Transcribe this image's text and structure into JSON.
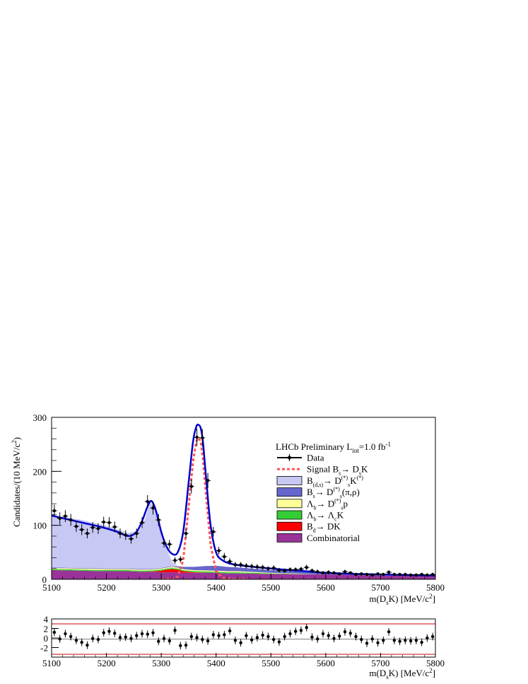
{
  "chart_data": [
    {
      "type": "line",
      "title": "",
      "annotation": "LHCb Preliminary L",
      "annotation_sub": "int",
      "annotation_tail": "=1.0 fb",
      "annotation_sup": "-1",
      "xlabel_main": "m(D",
      "xlabel_sub": "s",
      "xlabel_tail": "K) [MeV/c",
      "xlabel_sup": "2",
      "xlabel_end": "]",
      "ylabel": "Candidates/(10 MeV/c",
      "ylabel_sup": "2",
      "ylabel_end": ")",
      "xlim": [
        5100,
        5800
      ],
      "ylim": [
        0,
        300
      ],
      "x_ticks": [
        "5100",
        "5200",
        "5300",
        "5400",
        "5500",
        "5600",
        "5700",
        "5800"
      ],
      "y_ticks": [
        "0",
        "100",
        "200",
        "300"
      ],
      "legend": [
        {
          "key": "data",
          "label": "Data",
          "color": "#000000"
        },
        {
          "key": "signal",
          "label": "Signal B",
          "sub": "s",
          "label2": "→ D",
          "sub2": "s",
          "label3": "K",
          "color": "#ff5555"
        },
        {
          "key": "bds",
          "label": "B",
          "sub": "(d,s)",
          "label2": "→ D",
          "sub2": "s",
          "sup2": "(*)",
          "label3": "K",
          "sup3": "(*)",
          "color": "#c8c8f4"
        },
        {
          "key": "bs",
          "label": "B",
          "sub": "s",
          "label2": "→ D",
          "sub2": "s",
          "sup2": "(*)",
          "label3": "(π,ρ)",
          "color": "#6666cc"
        },
        {
          "key": "lb1",
          "label": "Λ",
          "sub": "b",
          "label2": "→ D",
          "sub2": "s",
          "sup2": "(*)",
          "label3": "p",
          "color": "#ffff99"
        },
        {
          "key": "lb2",
          "label": "Λ",
          "sub": "b",
          "label2": "→ Λ",
          "sub2": "c",
          "label3": "K",
          "color": "#33cc33"
        },
        {
          "key": "bd",
          "label": "B",
          "sub": "d",
          "label2": "→ DK",
          "color": "#ff0000"
        },
        {
          "key": "comb",
          "label": "Combinatorial",
          "color": "#993399"
        }
      ],
      "colors": {
        "fit": "#0000cc",
        "signal": "#ff5555",
        "bds": "#c8c8f4",
        "bs": "#6666cc",
        "lb1": "#ffff99",
        "lb2": "#33cc33",
        "bd": "#ff0000",
        "comb": "#993399"
      },
      "data_points": {
        "x": [
          5105,
          5115,
          5125,
          5135,
          5145,
          5155,
          5165,
          5175,
          5185,
          5195,
          5205,
          5215,
          5225,
          5235,
          5245,
          5255,
          5265,
          5275,
          5285,
          5295,
          5305,
          5315,
          5325,
          5335,
          5345,
          5355,
          5365,
          5375,
          5385,
          5395,
          5405,
          5415,
          5425,
          5435,
          5445,
          5455,
          5465,
          5475,
          5485,
          5495,
          5505,
          5515,
          5525,
          5535,
          5545,
          5555,
          5565,
          5575,
          5585,
          5595,
          5605,
          5615,
          5625,
          5635,
          5645,
          5655,
          5665,
          5675,
          5685,
          5695,
          5705,
          5715,
          5725,
          5735,
          5745,
          5755,
          5765,
          5775,
          5785,
          5795
        ],
        "y": [
          127,
          113,
          117,
          110,
          98,
          92,
          85,
          96,
          94,
          106,
          105,
          97,
          85,
          82,
          75,
          85,
          105,
          144,
          132,
          110,
          67,
          65,
          35,
          37,
          85,
          172,
          263,
          262,
          183,
          88,
          53,
          42,
          33,
          27,
          27,
          25,
          24,
          23,
          22,
          20,
          21,
          17,
          16,
          18,
          18,
          19,
          22,
          16,
          14,
          12,
          13,
          12,
          10,
          14,
          12,
          9,
          10,
          9,
          8,
          10,
          9,
          13,
          9,
          9,
          9,
          8,
          8,
          9,
          8,
          9
        ],
        "yerr": [
          11,
          11,
          11,
          11,
          10,
          10,
          9,
          10,
          10,
          10,
          10,
          10,
          9,
          9,
          9,
          9,
          10,
          12,
          12,
          11,
          8,
          8,
          6,
          6,
          9,
          13,
          16,
          16,
          14,
          9,
          7,
          7,
          6,
          5,
          5,
          5,
          5,
          5,
          5,
          4,
          5,
          4,
          4,
          4,
          4,
          4,
          5,
          4,
          4,
          3,
          4,
          3,
          3,
          4,
          3,
          3,
          3,
          3,
          3,
          3,
          3,
          4,
          3,
          3,
          3,
          3,
          3,
          3,
          3,
          3
        ]
      },
      "fit_total": {
        "x": [
          5100,
          5130,
          5160,
          5190,
          5220,
          5240,
          5255,
          5265,
          5275,
          5282,
          5290,
          5300,
          5310,
          5320,
          5330,
          5340,
          5350,
          5358,
          5364,
          5368,
          5372,
          5376,
          5382,
          5390,
          5400,
          5412,
          5430,
          5460,
          5500,
          5550,
          5600,
          5650,
          5700,
          5750,
          5800
        ],
        "y": [
          118,
          111,
          104,
          97,
          88,
          80,
          88,
          108,
          135,
          145,
          128,
          88,
          60,
          47,
          50,
          88,
          180,
          255,
          283,
          286,
          280,
          255,
          185,
          100,
          50,
          35,
          28,
          24,
          20,
          16,
          12,
          10,
          9,
          8,
          7
        ]
      },
      "signal": {
        "x": [
          5300,
          5320,
          5330,
          5340,
          5350,
          5358,
          5364,
          5368,
          5372,
          5376,
          5382,
          5390,
          5400,
          5412,
          5430,
          5460
        ],
        "y": [
          0,
          1,
          5,
          35,
          135,
          218,
          256,
          262,
          255,
          224,
          152,
          63,
          15,
          3,
          0.5,
          0
        ]
      },
      "stack": {
        "x": [
          5100,
          5150,
          5200,
          5240,
          5260,
          5270,
          5280,
          5290,
          5300,
          5310,
          5320,
          5330,
          5340,
          5360,
          5380,
          5400,
          5420,
          5440,
          5500,
          5600,
          5700,
          5800
        ],
        "comb": [
          17,
          16,
          15,
          15,
          14,
          14,
          14,
          14,
          13,
          13,
          13,
          13,
          12,
          12,
          12,
          12,
          11,
          11,
          10,
          9,
          7,
          6
        ],
        "bd": [
          0,
          0,
          0,
          0,
          0,
          0,
          0.5,
          1,
          3,
          5,
          6,
          5,
          3,
          1,
          0.5,
          0,
          0,
          0,
          0,
          0,
          0,
          0
        ],
        "lb2": [
          2,
          2,
          2,
          2,
          2,
          2,
          2,
          2,
          2,
          2,
          2,
          2,
          2,
          2,
          2,
          2,
          2,
          2,
          1,
          0,
          0,
          0
        ],
        "lb1": [
          2,
          2,
          2,
          2,
          2,
          2,
          2,
          2,
          2,
          2,
          2,
          2,
          2,
          2,
          2,
          2,
          2,
          2,
          1,
          0,
          0,
          0
        ],
        "bs": [
          1,
          1,
          1,
          1,
          1,
          1,
          1,
          1,
          1,
          1,
          1,
          2,
          4,
          6,
          8,
          9,
          8,
          7,
          5,
          3,
          2,
          1
        ],
        "bds": [
          97,
          90,
          79,
          66,
          71,
          92,
          124,
          110,
          68,
          34,
          8,
          1,
          0,
          0,
          0,
          0,
          0,
          0,
          0,
          0,
          0,
          0
        ]
      }
    },
    {
      "type": "scatter",
      "title": "",
      "xlabel_main": "m(D",
      "xlabel_sub": "s",
      "xlabel_tail": "K) [MeV/c",
      "xlabel_sup": "2",
      "xlabel_end": "]",
      "xlim": [
        5100,
        5800
      ],
      "ylim": [
        -4,
        4
      ],
      "x_ticks": [
        "5100",
        "5200",
        "5300",
        "5400",
        "5500",
        "5600",
        "5700",
        "5800"
      ],
      "y_ticks": [
        "-2",
        "0",
        "2",
        "4"
      ],
      "reference_lines": [
        -3,
        3
      ],
      "reference_color": "#cc0000",
      "pulls": {
        "x": [
          5105,
          5115,
          5125,
          5135,
          5145,
          5155,
          5165,
          5175,
          5185,
          5195,
          5205,
          5215,
          5225,
          5235,
          5245,
          5255,
          5265,
          5275,
          5285,
          5295,
          5305,
          5315,
          5325,
          5335,
          5345,
          5355,
          5365,
          5375,
          5385,
          5395,
          5405,
          5415,
          5425,
          5435,
          5445,
          5455,
          5465,
          5475,
          5485,
          5495,
          5505,
          5515,
          5525,
          5535,
          5545,
          5555,
          5565,
          5575,
          5585,
          5595,
          5605,
          5615,
          5625,
          5635,
          5645,
          5655,
          5665,
          5675,
          5685,
          5695,
          5705,
          5715,
          5725,
          5735,
          5745,
          5755,
          5765,
          5775,
          5785,
          5795
        ],
        "y": [
          1.2,
          -0.2,
          0.9,
          0.3,
          -0.5,
          -0.9,
          -1.5,
          -0.1,
          -0.3,
          1.1,
          1.4,
          1.0,
          0.1,
          0.2,
          -0.1,
          0.5,
          0.9,
          0.8,
          1.1,
          -0.7,
          -0.1,
          -0.6,
          1.6,
          -1.6,
          -1.5,
          0.3,
          0.1,
          -0.3,
          -0.6,
          0.7,
          0.5,
          0.7,
          1.5,
          -0.5,
          -1.0,
          0.5,
          -0.4,
          0.1,
          0.6,
          0.3,
          -0.3,
          -0.8,
          0.3,
          0.9,
          1.4,
          1.6,
          2.2,
          0.2,
          -0.2,
          0.9,
          0.5,
          -0.1,
          0.4,
          1.3,
          1.0,
          0.3,
          -0.3,
          -1.1,
          -0.2,
          -1.0,
          -0.5,
          1.3,
          -0.5,
          -0.7,
          -0.5,
          -0.6,
          -0.5,
          -0.9,
          0.0,
          0.3
        ],
        "yerr": [
          0.8,
          0.8,
          0.8,
          0.8,
          0.8,
          0.8,
          0.8,
          0.8,
          0.8,
          0.8,
          0.8,
          0.8,
          0.8,
          0.8,
          0.8,
          0.8,
          0.8,
          0.8,
          0.8,
          0.8,
          0.8,
          0.8,
          0.8,
          0.8,
          0.8,
          0.8,
          0.8,
          0.8,
          0.8,
          0.8,
          0.8,
          0.8,
          0.8,
          0.8,
          0.8,
          0.8,
          0.8,
          0.8,
          0.8,
          0.8,
          0.8,
          0.8,
          0.8,
          0.8,
          0.8,
          0.8,
          0.8,
          0.8,
          0.8,
          0.8,
          0.8,
          0.8,
          0.8,
          0.8,
          0.8,
          0.8,
          0.8,
          0.8,
          0.8,
          0.8,
          0.8,
          0.8,
          0.8,
          0.8,
          0.8,
          0.8,
          0.8,
          0.8,
          0.8,
          0.8
        ]
      }
    }
  ]
}
